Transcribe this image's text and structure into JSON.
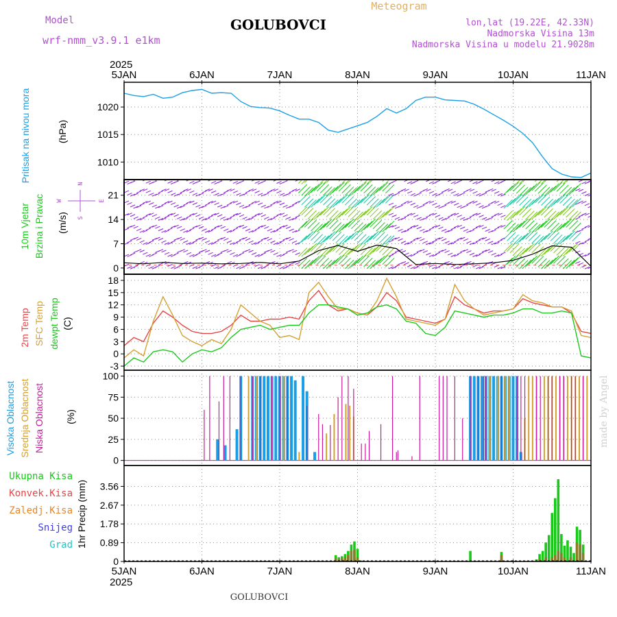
{
  "header": {
    "model_label": "Model",
    "model_name": "wrf-nmm_v3.9.1 e1km",
    "station": "GOLUBOVCI",
    "chart_kind": "Meteogram",
    "lonlat": "lon,lat (19.22E, 42.33N)",
    "altitude": "Nadmorska Visina 13m",
    "model_altitude": "Nadmorska Visina u modelu 21.9028m",
    "footer_station": "GOLUBOVCI",
    "watermark": "made by Angel"
  },
  "time_axis": {
    "year": "2025",
    "ticks": [
      "5JAN",
      "6JAN",
      "7JAN",
      "8JAN",
      "9JAN",
      "10JAN",
      "11JAN"
    ]
  },
  "colors": {
    "pressure": "#1a9fe6",
    "wind_green": "#19c819",
    "temp2m": "#e64545",
    "sfc": "#d4a030",
    "dewpt": "#19c819",
    "high_cloud": "#1a9fe6",
    "mid_cloud": "#d4a030",
    "low_cloud": "#c8189f",
    "precip_total": "#19c819",
    "precip_conv": "#e64545",
    "precip_frozen": "#e6862a",
    "snow": "#3c3ce6",
    "graupel": "#19c8c8",
    "model_text": "#b050d0",
    "meteogram_text": "#e0b060",
    "info_text": "#b050d0",
    "wind_barb": "#8a1adc",
    "wind_black": "#000000"
  },
  "chart_data": [
    {
      "panel": "pressure",
      "type": "line",
      "ylabel": "Pritisak na nivou mora",
      "unit": "(hPa)",
      "yticks": [
        1010,
        1015,
        1020
      ],
      "ylim": [
        1006.8,
        1024.5
      ],
      "series": [
        {
          "x": [
            0,
            0.125,
            0.25,
            0.375,
            0.5,
            0.625,
            0.75,
            0.875,
            1,
            1.125,
            1.25,
            1.375,
            1.5,
            1.625,
            1.75,
            1.875,
            2,
            2.125,
            2.25,
            2.375,
            2.5,
            2.625,
            2.75,
            2.875,
            3,
            3.125,
            3.25,
            3.375,
            3.5,
            3.625,
            3.75,
            3.875,
            4,
            4.125,
            4.25,
            4.375,
            4.5,
            4.625,
            4.75,
            4.875,
            5,
            5.125,
            5.25,
            5.375,
            5.5,
            5.625,
            5.75,
            5.875,
            6
          ],
          "values": [
            1022.5,
            1022.1,
            1021.9,
            1022.3,
            1021.6,
            1021.8,
            1022.6,
            1023.0,
            1023.2,
            1022.5,
            1022.6,
            1022.5,
            1021.0,
            1020.1,
            1019.9,
            1019.8,
            1019.3,
            1018.5,
            1017.8,
            1017.8,
            1017.2,
            1015.8,
            1015.4,
            1016.0,
            1016.6,
            1017.2,
            1018.3,
            1019.7,
            1018.9,
            1019.7,
            1021.2,
            1021.8,
            1021.8,
            1021.3,
            1021.2,
            1021.1,
            1020.5,
            1019.6,
            1018.6,
            1017.6,
            1016.5,
            1015.2,
            1013.5,
            1011.0,
            1008.8,
            1007.8,
            1007.3,
            1007.2,
            1008.0
          ]
        }
      ]
    },
    {
      "panel": "wind",
      "type": "line",
      "ylabel": [
        "10m Vjetar",
        "Brzina i Pravac"
      ],
      "unit": "(m/s)",
      "yticks": [
        0,
        7,
        14,
        21
      ],
      "ylim": [
        -1.8,
        25.5
      ],
      "compass": [
        "N",
        "E",
        "S",
        "W"
      ],
      "series": [
        {
          "name": "wind speed",
          "x": [
            0,
            0.25,
            0.5,
            0.75,
            1,
            1.25,
            1.5,
            1.75,
            2,
            2.25,
            2.5,
            2.75,
            3,
            3.25,
            3.5,
            3.75,
            4,
            4.25,
            4.5,
            4.75,
            5,
            5.25,
            5.5,
            5.75,
            6
          ],
          "values": [
            1.5,
            1.2,
            1.6,
            1.3,
            1.4,
            1.2,
            1.3,
            1.6,
            1.2,
            2.0,
            5.0,
            6.5,
            4.8,
            6.6,
            5.6,
            1.0,
            1.3,
            1.0,
            1.2,
            1.5,
            2.2,
            4.0,
            6.4,
            6.0,
            0.5
          ]
        }
      ]
    },
    {
      "panel": "temperature",
      "type": "line",
      "ylabels": [
        "2m Temp",
        "SFC Temp",
        "dewpt Temp"
      ],
      "unit": "(C)",
      "yticks": [
        -3,
        0,
        3,
        6,
        9,
        12,
        15,
        18
      ],
      "ylim": [
        -4,
        19.5
      ],
      "x": [
        0,
        0.125,
        0.25,
        0.375,
        0.5,
        0.625,
        0.75,
        0.875,
        1,
        1.125,
        1.25,
        1.375,
        1.5,
        1.625,
        1.75,
        1.875,
        2,
        2.125,
        2.25,
        2.375,
        2.5,
        2.625,
        2.75,
        2.875,
        3,
        3.125,
        3.25,
        3.375,
        3.5,
        3.625,
        3.75,
        3.875,
        4,
        4.125,
        4.25,
        4.375,
        4.5,
        4.625,
        4.75,
        4.875,
        5,
        5.125,
        5.25,
        5.375,
        5.5,
        5.625,
        5.75,
        5.875,
        6
      ],
      "series": [
        {
          "name": "2m Temp",
          "values": [
            2,
            4,
            3,
            7.5,
            10.5,
            9,
            7,
            5.5,
            5,
            5,
            5.5,
            7,
            9.5,
            8,
            8,
            8.5,
            8.5,
            9,
            8.5,
            13,
            15.5,
            12,
            10.5,
            11,
            10,
            9.5,
            11.5,
            15,
            13,
            9,
            8.5,
            8,
            7.5,
            8.5,
            14,
            12,
            11,
            10,
            10.5,
            10.5,
            11,
            13.5,
            12.5,
            12,
            11.5,
            11.5,
            10,
            5.5,
            5
          ]
        },
        {
          "name": "SFC Temp",
          "values": [
            -1,
            1,
            -0.5,
            8,
            14,
            9.5,
            4.5,
            3,
            2,
            3.5,
            2.5,
            6,
            12,
            10,
            8,
            7,
            4,
            4.5,
            3.5,
            15,
            17.5,
            14,
            11,
            11,
            10,
            9.5,
            13,
            18.5,
            14,
            8.5,
            8,
            7.5,
            7,
            8.5,
            17,
            13,
            11,
            9.5,
            10,
            10.5,
            11,
            14.5,
            13,
            12.5,
            11.5,
            11.5,
            10.5,
            4.5,
            4
          ]
        },
        {
          "name": "dewpt Temp",
          "values": [
            -3,
            -1,
            -2,
            0.5,
            1,
            0.5,
            -2,
            0,
            1,
            0.5,
            1.5,
            4,
            6,
            6.5,
            7,
            6,
            6.5,
            7,
            7,
            10,
            12,
            12,
            11.5,
            11,
            9.5,
            10,
            11.5,
            12,
            11,
            8,
            7.5,
            5,
            4.5,
            6.5,
            10.5,
            10,
            9.5,
            9,
            9.5,
            9.5,
            10,
            11,
            11,
            10,
            10,
            10.5,
            10,
            -0.5,
            -1
          ]
        }
      ]
    },
    {
      "panel": "cloud",
      "type": "bar",
      "ylabels": [
        "Visoka Oblacnost",
        "Srednja Oblacnost",
        "Niska Oblacnost"
      ],
      "unit": "(%)",
      "yticks": [
        0,
        25,
        50,
        75,
        100
      ],
      "ylim": [
        -6,
        107
      ],
      "series": [
        {
          "name": "Visoka Oblacnost",
          "x": [
            1.2,
            1.3,
            1.45,
            1.5,
            1.65,
            1.7,
            1.75,
            1.8,
            1.85,
            1.9,
            1.95,
            2.0,
            2.05,
            2.1,
            2.15,
            2.2,
            2.3,
            2.35,
            2.45,
            4.45,
            4.5,
            4.55,
            4.6,
            4.65,
            4.7,
            4.75,
            4.8,
            4.85,
            4.9,
            4.95,
            5.0,
            5.05,
            5.1
          ],
          "values": [
            25,
            18,
            37,
            100,
            100,
            100,
            100,
            100,
            100,
            100,
            100,
            100,
            100,
            100,
            100,
            95,
            100,
            82,
            10,
            100,
            100,
            100,
            100,
            100,
            100,
            100,
            100,
            100,
            100,
            100,
            100,
            100,
            10
          ]
        },
        {
          "name": "Srednja Oblacnost",
          "x": [
            1.6,
            1.7,
            1.9,
            2.05,
            2.25,
            2.6,
            2.7,
            2.85,
            2.9,
            2.95,
            4.7,
            4.8,
            4.9,
            4.95,
            5.15,
            5.2,
            5.25,
            5.3,
            5.4,
            5.45,
            5.5,
            5.55,
            5.6,
            5.65,
            5.7,
            5.75,
            5.8,
            5.85,
            5.9,
            5.95
          ],
          "values": [
            100,
            100,
            100,
            100,
            10,
            32,
            55,
            67,
            65,
            52,
            100,
            100,
            100,
            100,
            50,
            100,
            100,
            100,
            100,
            100,
            100,
            100,
            100,
            100,
            100,
            100,
            100,
            100,
            100,
            100
          ]
        },
        {
          "name": "Niska Oblacnost",
          "x": [
            1.03,
            1.1,
            1.22,
            1.28,
            1.36,
            1.5,
            1.65,
            1.75,
            1.9,
            2.0,
            2.1,
            2.35,
            2.5,
            2.55,
            2.65,
            2.75,
            2.8,
            2.88,
            2.95,
            3.05,
            3.1,
            3.15,
            3.3,
            3.45,
            3.5,
            3.52,
            3.7,
            3.8,
            4.05,
            4.1,
            4.15,
            4.25,
            4.35,
            4.45,
            4.55,
            4.62,
            4.65,
            4.85,
            5.05,
            5.1,
            5.15,
            5.3,
            5.35,
            5.45,
            5.5,
            5.6,
            5.65,
            5.75,
            5.8,
            5.9
          ],
          "values": [
            60,
            100,
            70,
            100,
            100,
            100,
            100,
            100,
            100,
            100,
            100,
            65,
            55,
            43,
            42,
            75,
            100,
            100,
            85,
            20,
            20,
            35,
            43,
            100,
            10,
            12,
            5,
            100,
            100,
            100,
            100,
            100,
            50,
            100,
            100,
            100,
            100,
            100,
            100,
            100,
            100,
            100,
            100,
            100,
            100,
            100,
            100,
            100,
            100,
            100
          ]
        }
      ]
    },
    {
      "panel": "precip",
      "type": "bar",
      "ylabel": "1hr Precip (mm)",
      "yticks": [
        0,
        0.89,
        1.78,
        2.67,
        3.56
      ],
      "ylim": [
        0,
        4.55
      ],
      "legend": [
        "Ukupna Kisa",
        "Konvek.Kisa",
        "Zaledj.Kisa",
        "Snijeg",
        "Grad"
      ],
      "series": [
        {
          "name": "Ukupna Kisa",
          "x": [
            2.72,
            2.76,
            2.8,
            2.84,
            2.88,
            2.92,
            2.96,
            3.0,
            3.04,
            4.45,
            4.85,
            5.3,
            5.34,
            5.38,
            5.42,
            5.46,
            5.5,
            5.54,
            5.58,
            5.62,
            5.66,
            5.7,
            5.74,
            5.78,
            5.82,
            5.86,
            5.9
          ],
          "values": [
            0.3,
            0.2,
            0.25,
            0.35,
            0.5,
            0.8,
            0.95,
            0.6,
            0.05,
            0.5,
            0.45,
            0.1,
            0.35,
            0.5,
            0.9,
            1.25,
            2.3,
            3.0,
            3.9,
            1.3,
            0.75,
            1.0,
            0.7,
            0.4,
            1.65,
            1.5,
            0.8
          ]
        },
        {
          "name": "Konvek.Kisa",
          "x": [
            2.72,
            2.76,
            2.8,
            2.84,
            2.88,
            2.92,
            2.96,
            3.0,
            4.85,
            5.3,
            5.34,
            5.42,
            5.5,
            5.54,
            5.58,
            5.62,
            5.66,
            5.74,
            5.82,
            5.86,
            5.9
          ],
          "values": [
            0.15,
            0.1,
            0.15,
            0.2,
            0.3,
            0.5,
            0.55,
            0.2,
            0.3,
            0.05,
            0.1,
            0.2,
            0.2,
            0.3,
            0.5,
            0.4,
            0.2,
            0.2,
            0.9,
            0.8,
            0.4
          ]
        }
      ]
    }
  ]
}
